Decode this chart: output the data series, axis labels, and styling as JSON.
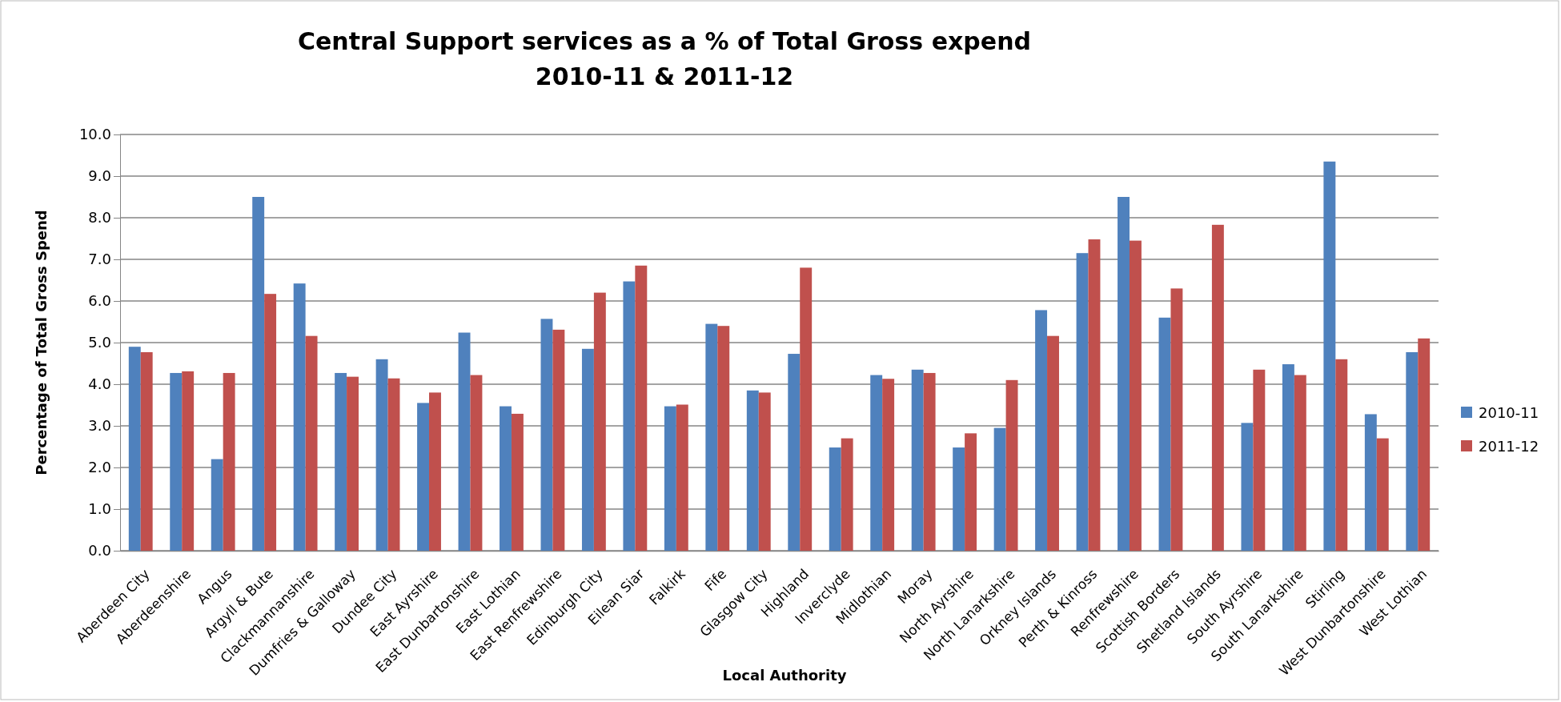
{
  "chart_data": {
    "type": "bar",
    "title": "Central Support services as a % of Total Gross expend\n2010-11 & 2011-12",
    "xlabel": "Local Authority",
    "ylabel": "Percentage of Total Gross Spend",
    "categories": [
      "Aberdeen City",
      "Aberdeenshire",
      "Angus",
      "Argyll & Bute",
      "Clackmannanshire",
      "Dumfries & Galloway",
      "Dundee City",
      "East Ayrshire",
      "East Dunbartonshire",
      "East Lothian",
      "East Renfrewshire",
      "Edinburgh City",
      "Eilean Siar",
      "Falkirk",
      "Fife",
      "Glasgow City",
      "Highland",
      "Inverclyde",
      "Midlothian",
      "Moray",
      "North Ayrshire",
      "North Lanarkshire",
      "Orkney Islands",
      "Perth & Kinross",
      "Renfrewshire",
      "Scottish Borders",
      "Shetland Islands",
      "South Ayrshire",
      "South Lanarkshire",
      "Stirling",
      "West Dunbartonshire",
      "West Lothian"
    ],
    "series": [
      {
        "name": "2010-11",
        "color": "#4f81bd",
        "values": [
          4.9,
          4.27,
          2.2,
          8.5,
          6.42,
          4.27,
          4.6,
          3.55,
          5.24,
          3.47,
          5.57,
          4.85,
          6.47,
          3.47,
          5.45,
          3.85,
          4.73,
          2.48,
          4.22,
          4.35,
          2.48,
          2.95,
          5.78,
          7.15,
          8.5,
          5.6,
          null,
          3.07,
          4.48,
          9.35,
          3.28,
          4.77
        ]
      },
      {
        "name": "2011-12",
        "color": "#c0504d",
        "values": [
          4.77,
          4.31,
          4.27,
          6.17,
          5.16,
          4.18,
          4.14,
          3.8,
          4.22,
          3.29,
          5.31,
          6.2,
          6.85,
          3.51,
          5.4,
          3.8,
          6.8,
          2.7,
          4.13,
          4.27,
          2.82,
          4.1,
          5.16,
          7.48,
          7.45,
          6.3,
          7.83,
          4.35,
          4.22,
          4.6,
          2.7,
          5.1
        ]
      }
    ],
    "ylim": [
      0,
      10
    ],
    "yticks": [
      {
        "value": 0,
        "label": "0.0"
      },
      {
        "value": 1,
        "label": "1.0"
      },
      {
        "value": 2,
        "label": "2.0"
      },
      {
        "value": 3,
        "label": "3.0"
      },
      {
        "value": 4,
        "label": "4.0"
      },
      {
        "value": 5,
        "label": "5.0"
      },
      {
        "value": 6,
        "label": "6.0"
      },
      {
        "value": 7,
        "label": "7.0"
      },
      {
        "value": 8,
        "label": "8.0"
      },
      {
        "value": 9,
        "label": "9.0"
      },
      {
        "value": 10,
        "label": "10.0"
      }
    ],
    "grid": "y",
    "legend": "right"
  }
}
